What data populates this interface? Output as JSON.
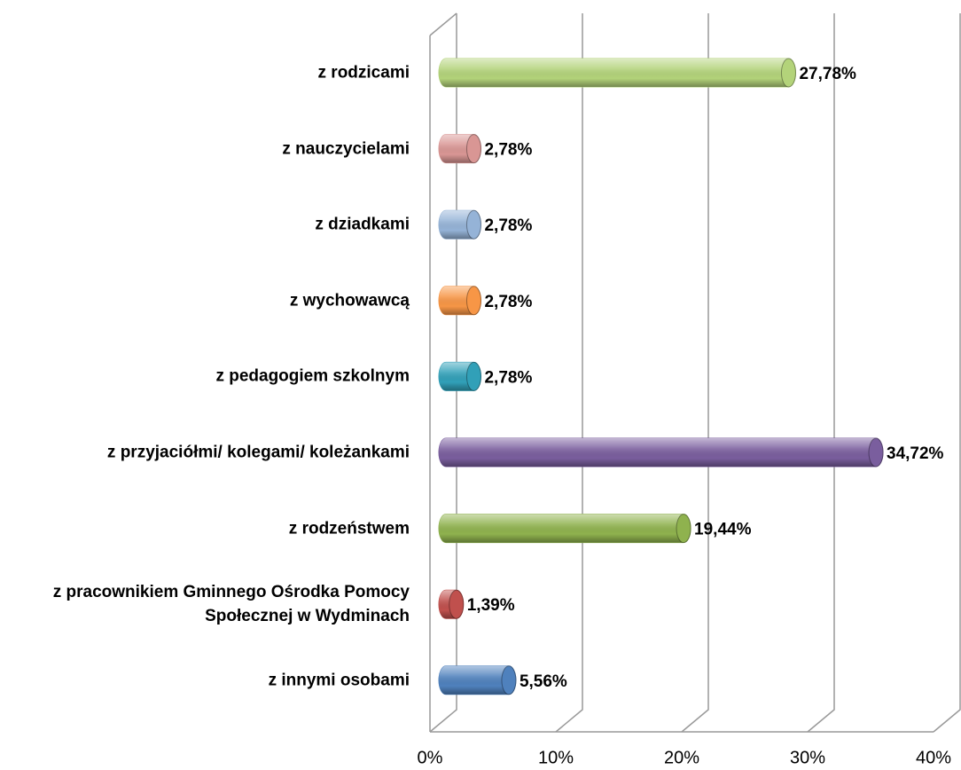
{
  "chart_data": {
    "type": "bar",
    "orientation": "horizontal",
    "categories": [
      "z rodzicami",
      "z nauczycielami",
      "z dziadkami",
      "z wychowawcą",
      "z pedagogiem szkolnym",
      "z przyjaciółmi/ kolegami/ koleżankami",
      "z rodzeństwem",
      "z pracownikiem Gminnego Ośrodka Pomocy Społecznej w Wydminach",
      "z innymi osobami"
    ],
    "values": [
      27.78,
      2.78,
      2.78,
      2.78,
      2.78,
      34.72,
      19.44,
      1.39,
      5.56
    ],
    "value_labels": [
      "27,78%",
      "2,78%",
      "2,78%",
      "2,78%",
      "2,78%",
      "34,72%",
      "19,44%",
      "1,39%",
      "5,56%"
    ],
    "colors": [
      "#b3d37a",
      "#d99694",
      "#95b3d7",
      "#f79646",
      "#31a0b8",
      "#7a5e9e",
      "#8fb24e",
      "#c0504d",
      "#4f81bd"
    ],
    "xlim": [
      0,
      40
    ],
    "xticks": [
      {
        "value": 0,
        "label": "0%"
      },
      {
        "value": 10,
        "label": "10%"
      },
      {
        "value": 20,
        "label": "20%"
      },
      {
        "value": 30,
        "label": "30%"
      },
      {
        "value": 40,
        "label": "40%"
      }
    ],
    "grid": true
  }
}
